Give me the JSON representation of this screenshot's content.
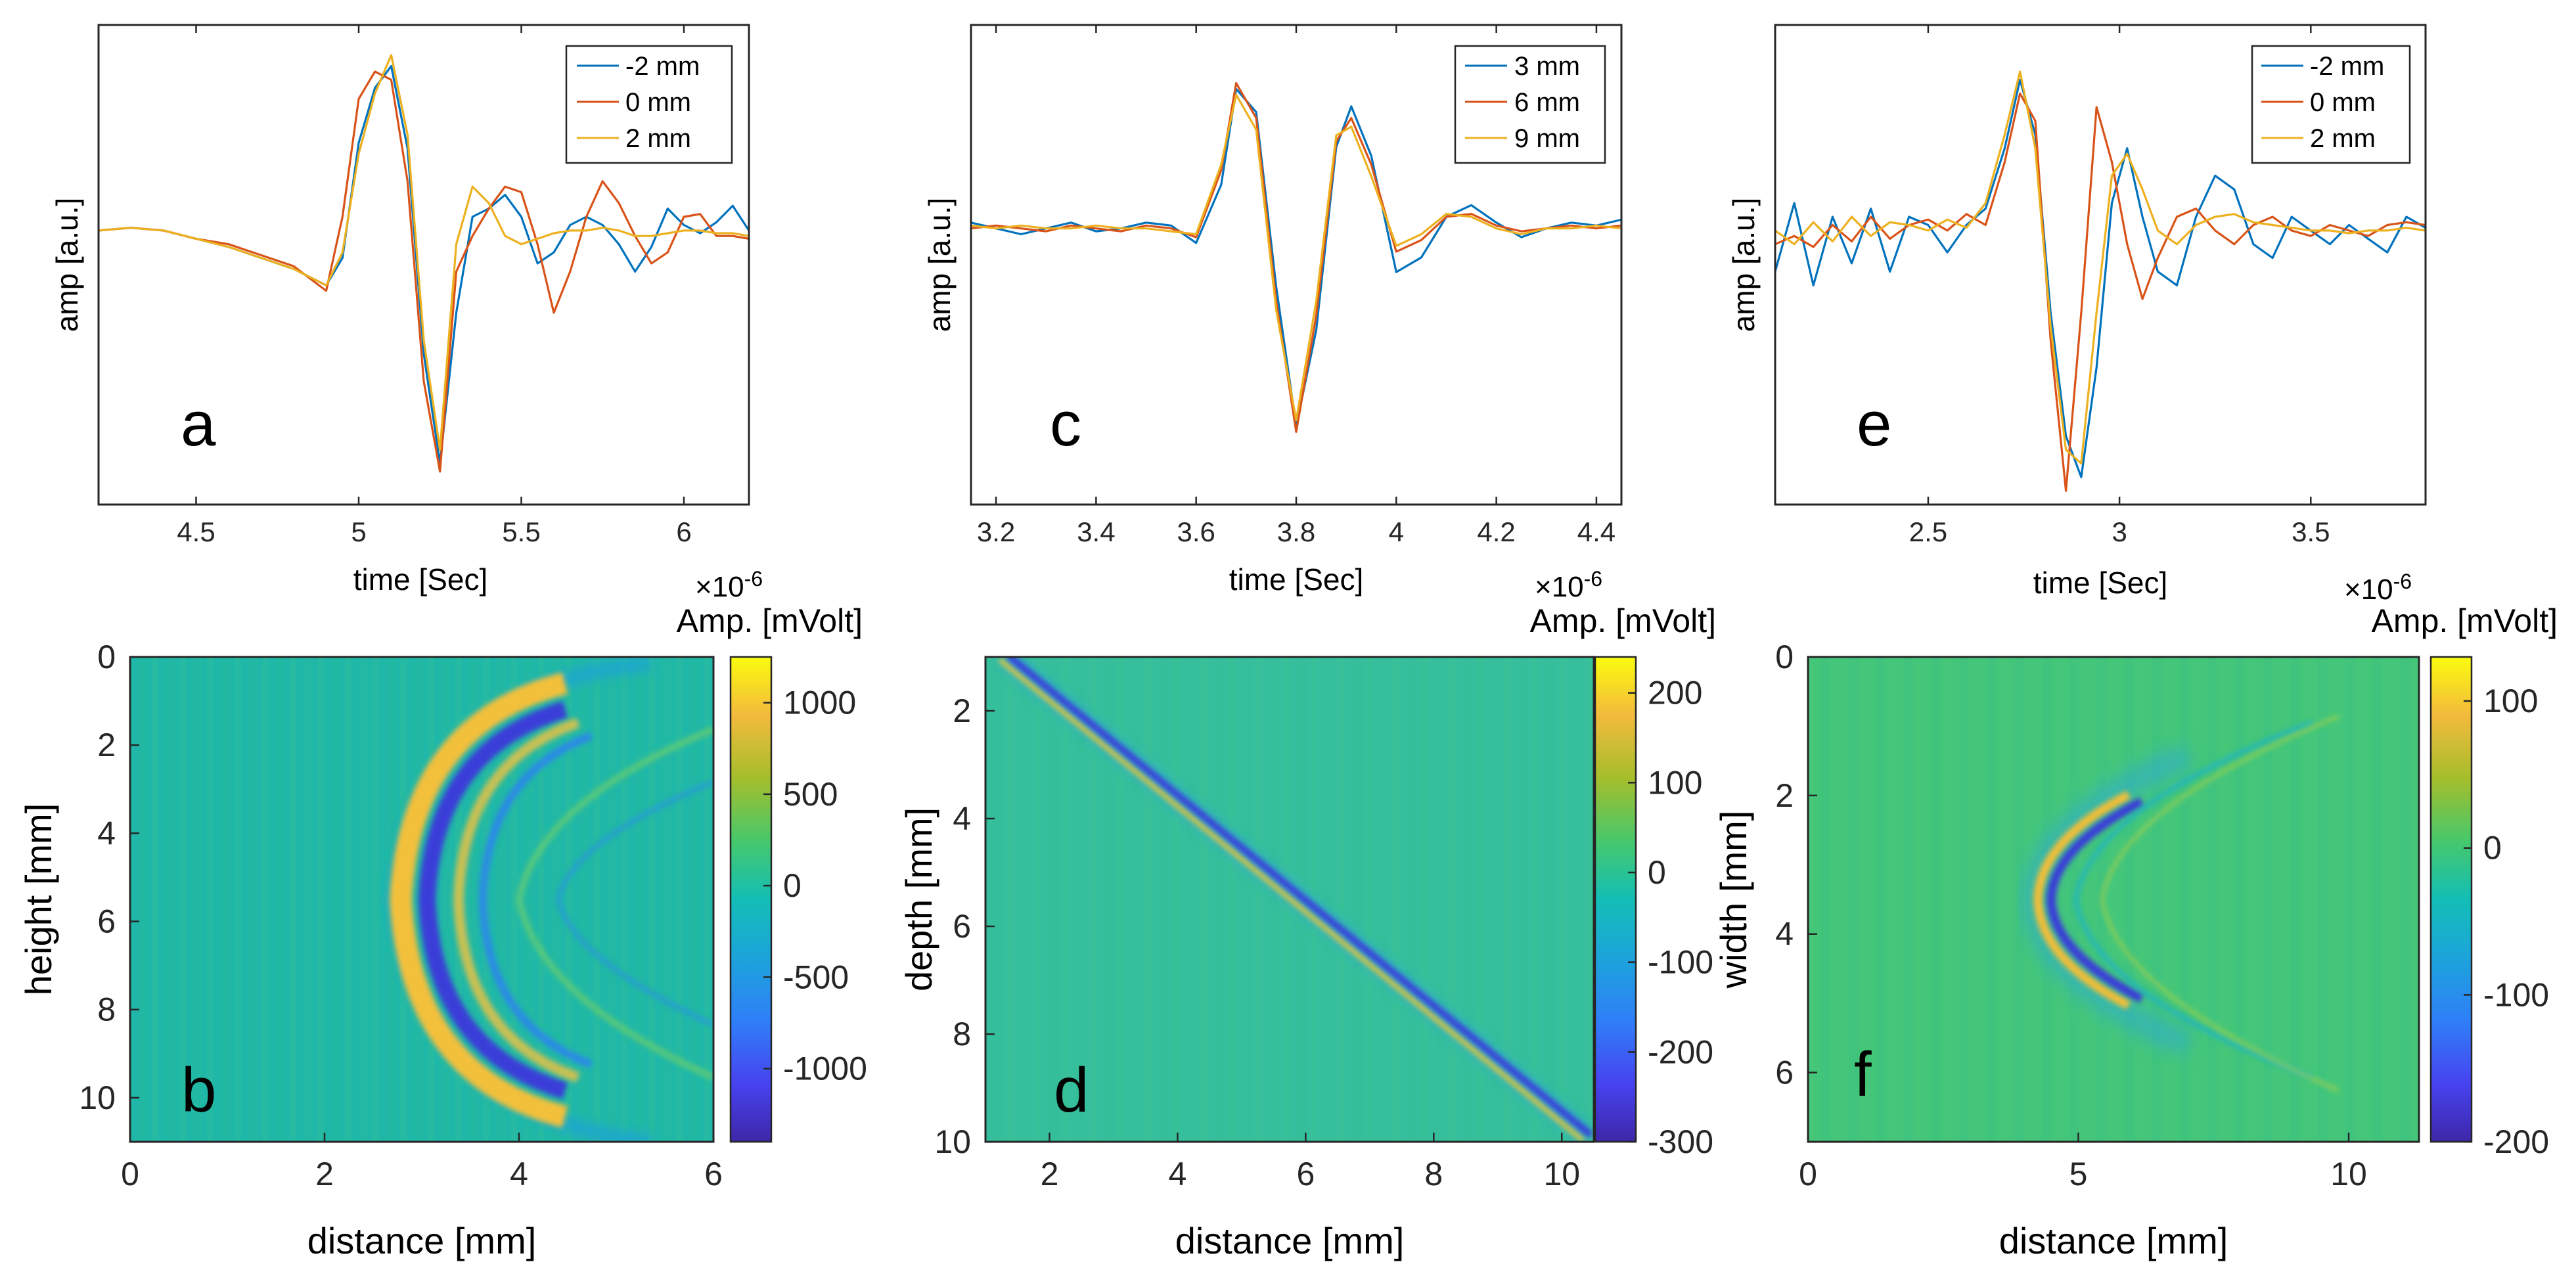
{
  "figure": {
    "panels": [
      {
        "letter": "a",
        "ylabel": "amp [a.u.]",
        "xlabel": "time [Sec]",
        "exponent": "×10",
        "exponent_power": "-6",
        "legend": [
          "-2 mm",
          "0 mm",
          "2 mm"
        ]
      },
      {
        "letter": "c",
        "ylabel": "amp [a.u.]",
        "xlabel": "time [Sec]",
        "exponent": "×10",
        "exponent_power": "-6",
        "legend": [
          "3 mm",
          "6 mm",
          "9 mm"
        ]
      },
      {
        "letter": "e",
        "ylabel": "amp [a.u.]",
        "xlabel": "time [Sec]",
        "exponent": "×10",
        "exponent_power": "-6",
        "legend": [
          "-2 mm",
          "0 mm",
          "2 mm"
        ]
      },
      {
        "letter": "b",
        "ylabel": "height [mm]",
        "xlabel": "distance [mm]",
        "colorbar_title": "Amp. [mVolt]"
      },
      {
        "letter": "d",
        "ylabel": "depth [mm]",
        "xlabel": "distance [mm]",
        "colorbar_title": "Amp. [mVolt]"
      },
      {
        "letter": "f",
        "ylabel": "width [mm]",
        "xlabel": "distance [mm]",
        "colorbar_title": "Amp. [mVolt]"
      }
    ],
    "series_colors": [
      "#0072BD",
      "#D95319",
      "#EDB120"
    ]
  },
  "chart_data": [
    {
      "type": "line",
      "panel": "a",
      "xlabel": "time [Sec]",
      "ylabel": "amp [a.u.]",
      "x_unit_exponent": "×10^-6",
      "xlim": [
        4.2,
        6.2
      ],
      "ylim": [
        -1.0,
        0.75
      ],
      "xticks": [
        4.5,
        5,
        5.5,
        6
      ],
      "xtick_labels": [
        "4.5",
        "5",
        "5.5",
        "6"
      ],
      "grid": false,
      "legend_position": "top-right",
      "series": [
        {
          "name": "-2 mm",
          "color": "#0072BD",
          "x": [
            4.2,
            4.3,
            4.4,
            4.5,
            4.6,
            4.7,
            4.8,
            4.9,
            4.95,
            5.0,
            5.05,
            5.1,
            5.15,
            5.2,
            5.25,
            5.3,
            5.35,
            5.4,
            5.45,
            5.5,
            5.55,
            5.6,
            5.65,
            5.7,
            5.75,
            5.8,
            5.85,
            5.9,
            5.95,
            6.0,
            6.05,
            6.1,
            6.15,
            6.2
          ],
          "y": [
            0.0,
            0.01,
            0.0,
            -0.03,
            -0.06,
            -0.1,
            -0.14,
            -0.2,
            -0.1,
            0.32,
            0.52,
            0.6,
            0.3,
            -0.45,
            -0.85,
            -0.3,
            0.05,
            0.08,
            0.13,
            0.05,
            -0.12,
            -0.08,
            0.02,
            0.05,
            0.02,
            -0.05,
            -0.15,
            -0.06,
            0.08,
            0.02,
            -0.01,
            0.03,
            0.09,
            0.0
          ]
        },
        {
          "name": "0 mm",
          "color": "#D95319",
          "x": [
            4.2,
            4.3,
            4.4,
            4.5,
            4.6,
            4.7,
            4.8,
            4.9,
            4.95,
            5.0,
            5.05,
            5.1,
            5.15,
            5.2,
            5.25,
            5.3,
            5.35,
            5.4,
            5.45,
            5.5,
            5.55,
            5.6,
            5.65,
            5.7,
            5.75,
            5.8,
            5.85,
            5.9,
            5.95,
            6.0,
            6.05,
            6.1,
            6.15,
            6.2
          ],
          "y": [
            0.0,
            0.01,
            0.0,
            -0.03,
            -0.05,
            -0.09,
            -0.13,
            -0.22,
            0.05,
            0.48,
            0.58,
            0.55,
            0.18,
            -0.55,
            -0.88,
            -0.15,
            -0.02,
            0.08,
            0.16,
            0.14,
            -0.05,
            -0.3,
            -0.15,
            0.05,
            0.18,
            0.1,
            -0.02,
            -0.12,
            -0.08,
            0.05,
            0.06,
            -0.02,
            -0.02,
            -0.03
          ]
        },
        {
          "name": "2 mm",
          "color": "#EDB120",
          "x": [
            4.2,
            4.3,
            4.4,
            4.5,
            4.6,
            4.7,
            4.8,
            4.9,
            4.95,
            5.0,
            5.05,
            5.1,
            5.15,
            5.2,
            5.25,
            5.3,
            5.35,
            5.4,
            5.45,
            5.5,
            5.55,
            5.6,
            5.65,
            5.7,
            5.75,
            5.8,
            5.85,
            5.9,
            5.95,
            6.0,
            6.05,
            6.1,
            6.15,
            6.2
          ],
          "y": [
            0.0,
            0.01,
            0.0,
            -0.03,
            -0.06,
            -0.1,
            -0.14,
            -0.2,
            -0.08,
            0.28,
            0.5,
            0.64,
            0.35,
            -0.4,
            -0.8,
            -0.05,
            0.16,
            0.1,
            -0.02,
            -0.05,
            -0.03,
            -0.01,
            0.0,
            0.0,
            0.01,
            0.0,
            -0.02,
            -0.02,
            -0.01,
            0.0,
            0.0,
            -0.01,
            -0.01,
            -0.02
          ]
        }
      ]
    },
    {
      "type": "line",
      "panel": "c",
      "xlabel": "time [Sec]",
      "ylabel": "amp [a.u.]",
      "x_unit_exponent": "×10^-6",
      "xlim": [
        3.15,
        4.45
      ],
      "ylim": [
        -0.95,
        0.7
      ],
      "xticks": [
        3.2,
        3.4,
        3.6,
        3.8,
        4.0,
        4.2,
        4.4
      ],
      "xtick_labels": [
        "3.2",
        "3.4",
        "3.6",
        "3.8",
        "4",
        "4.2",
        "4.4"
      ],
      "grid": false,
      "legend_position": "top-right",
      "series": [
        {
          "name": "3 mm",
          "color": "#0072BD",
          "x": [
            3.15,
            3.2,
            3.25,
            3.3,
            3.35,
            3.4,
            3.45,
            3.5,
            3.55,
            3.6,
            3.65,
            3.68,
            3.72,
            3.76,
            3.8,
            3.84,
            3.88,
            3.91,
            3.95,
            4.0,
            4.05,
            4.1,
            4.15,
            4.2,
            4.25,
            4.3,
            4.35,
            4.4,
            4.45
          ],
          "y": [
            0.02,
            0.0,
            -0.02,
            0.0,
            0.02,
            -0.01,
            0.0,
            0.02,
            0.01,
            -0.05,
            0.15,
            0.48,
            0.4,
            -0.2,
            -0.68,
            -0.35,
            0.28,
            0.42,
            0.25,
            -0.15,
            -0.1,
            0.04,
            0.08,
            0.02,
            -0.03,
            0.0,
            0.02,
            0.01,
            0.03
          ]
        },
        {
          "name": "6 mm",
          "color": "#D95319",
          "x": [
            3.15,
            3.2,
            3.25,
            3.3,
            3.35,
            3.4,
            3.45,
            3.5,
            3.55,
            3.6,
            3.65,
            3.68,
            3.72,
            3.76,
            3.8,
            3.84,
            3.88,
            3.91,
            3.95,
            4.0,
            4.05,
            4.1,
            4.15,
            4.2,
            4.25,
            4.3,
            4.35,
            4.4,
            4.45
          ],
          "y": [
            0.0,
            0.01,
            0.0,
            -0.01,
            0.01,
            0.0,
            -0.01,
            0.01,
            0.0,
            -0.03,
            0.2,
            0.5,
            0.38,
            -0.25,
            -0.7,
            -0.3,
            0.3,
            0.38,
            0.22,
            -0.08,
            -0.04,
            0.04,
            0.05,
            0.01,
            -0.01,
            0.0,
            0.01,
            0.0,
            0.01
          ]
        },
        {
          "name": "9 mm",
          "color": "#EDB120",
          "x": [
            3.15,
            3.2,
            3.25,
            3.3,
            3.35,
            3.4,
            3.45,
            3.5,
            3.55,
            3.6,
            3.65,
            3.68,
            3.72,
            3.76,
            3.8,
            3.84,
            3.88,
            3.91,
            3.95,
            4.0,
            4.05,
            4.1,
            4.15,
            4.2,
            4.25,
            4.3,
            4.35,
            4.4,
            4.45
          ],
          "y": [
            0.01,
            0.0,
            0.01,
            0.0,
            0.0,
            0.01,
            0.0,
            0.0,
            -0.01,
            -0.02,
            0.22,
            0.46,
            0.34,
            -0.28,
            -0.66,
            -0.25,
            0.32,
            0.35,
            0.18,
            -0.06,
            -0.02,
            0.05,
            0.04,
            0.0,
            -0.02,
            0.0,
            0.0,
            0.01,
            0.0
          ]
        }
      ]
    },
    {
      "type": "line",
      "panel": "e",
      "xlabel": "time [Sec]",
      "ylabel": "amp [a.u.]",
      "x_unit_exponent": "×10^-6",
      "xlim": [
        2.1,
        3.8
      ],
      "ylim": [
        -1.0,
        0.75
      ],
      "xticks": [
        2.5,
        3.0,
        3.5
      ],
      "xtick_labels": [
        "2.5",
        "3",
        "3.5"
      ],
      "grid": false,
      "legend_position": "top-right",
      "series": [
        {
          "name": "-2 mm",
          "color": "#0072BD",
          "x": [
            2.1,
            2.15,
            2.2,
            2.25,
            2.3,
            2.35,
            2.4,
            2.45,
            2.5,
            2.55,
            2.6,
            2.65,
            2.7,
            2.74,
            2.78,
            2.82,
            2.86,
            2.9,
            2.94,
            2.98,
            3.02,
            3.06,
            3.1,
            3.15,
            3.2,
            3.25,
            3.3,
            3.35,
            3.4,
            3.45,
            3.5,
            3.55,
            3.6,
            3.65,
            3.7,
            3.75,
            3.8
          ],
          "y": [
            -0.15,
            0.1,
            -0.2,
            0.05,
            -0.12,
            0.08,
            -0.15,
            0.05,
            0.02,
            -0.08,
            0.02,
            0.08,
            0.3,
            0.55,
            0.35,
            -0.3,
            -0.75,
            -0.9,
            -0.5,
            0.1,
            0.3,
            0.05,
            -0.15,
            -0.2,
            0.05,
            0.2,
            0.15,
            -0.05,
            -0.1,
            0.05,
            0.0,
            -0.05,
            0.02,
            -0.03,
            -0.08,
            0.05,
            0.01
          ]
        },
        {
          "name": "0 mm",
          "color": "#D95319",
          "x": [
            2.1,
            2.15,
            2.2,
            2.25,
            2.3,
            2.35,
            2.4,
            2.45,
            2.5,
            2.55,
            2.6,
            2.65,
            2.7,
            2.74,
            2.78,
            2.82,
            2.86,
            2.9,
            2.94,
            2.98,
            3.02,
            3.06,
            3.1,
            3.15,
            3.2,
            3.25,
            3.3,
            3.35,
            3.4,
            3.45,
            3.5,
            3.55,
            3.6,
            3.65,
            3.7,
            3.75,
            3.8
          ],
          "y": [
            -0.05,
            -0.02,
            -0.06,
            0.02,
            -0.04,
            0.05,
            -0.03,
            0.02,
            0.04,
            0.0,
            0.06,
            0.02,
            0.25,
            0.5,
            0.4,
            -0.4,
            -0.95,
            -0.3,
            0.45,
            0.25,
            -0.05,
            -0.25,
            -0.1,
            0.05,
            0.08,
            0.0,
            -0.05,
            0.02,
            0.05,
            0.0,
            -0.02,
            0.02,
            0.0,
            -0.02,
            0.02,
            0.03,
            0.02
          ]
        },
        {
          "name": "2 mm",
          "color": "#EDB120",
          "x": [
            2.1,
            2.15,
            2.2,
            2.25,
            2.3,
            2.35,
            2.4,
            2.45,
            2.5,
            2.55,
            2.6,
            2.65,
            2.7,
            2.74,
            2.78,
            2.82,
            2.86,
            2.9,
            2.94,
            2.98,
            3.02,
            3.06,
            3.1,
            3.15,
            3.2,
            3.25,
            3.3,
            3.35,
            3.4,
            3.45,
            3.5,
            3.55,
            3.6,
            3.65,
            3.7,
            3.75,
            3.8
          ],
          "y": [
            0.0,
            -0.05,
            0.03,
            -0.04,
            0.05,
            -0.02,
            0.03,
            0.02,
            0.0,
            0.04,
            0.01,
            0.1,
            0.35,
            0.58,
            0.3,
            -0.35,
            -0.8,
            -0.85,
            -0.3,
            0.2,
            0.28,
            0.15,
            0.0,
            -0.05,
            0.02,
            0.05,
            0.06,
            0.03,
            0.02,
            0.01,
            0.0,
            0.0,
            -0.01,
            0.0,
            0.0,
            0.01,
            0.0
          ]
        }
      ]
    },
    {
      "type": "heatmap",
      "panel": "b",
      "xlabel": "distance [mm]",
      "ylabel": "height [mm]",
      "xlim": [
        0,
        6
      ],
      "ylim": [
        0,
        11
      ],
      "y_reversed": true,
      "xticks": [
        0,
        2,
        4,
        6
      ],
      "yticks": [
        0,
        2,
        4,
        6,
        8,
        10
      ],
      "colorbar": {
        "title": "Amp. [mVolt]",
        "range": [
          -1400,
          1250
        ],
        "ticks": [
          1000,
          500,
          0,
          -500,
          -1000
        ]
      },
      "colormap": "parula",
      "pattern": "hyperbolic wavefront, apex at x≈2.8 mm, y≈5.5 mm"
    },
    {
      "type": "heatmap",
      "panel": "d",
      "xlabel": "distance [mm]",
      "ylabel": "depth [mm]",
      "xlim": [
        1,
        10.5
      ],
      "ylim": [
        1,
        10
      ],
      "y_reversed": true,
      "xticks": [
        2,
        4,
        6,
        8,
        10
      ],
      "yticks": [
        2,
        4,
        6,
        8,
        10
      ],
      "colorbar": {
        "title": "Amp. [mVolt]",
        "range": [
          -300,
          240
        ],
        "ticks": [
          200,
          100,
          0,
          -100,
          -200,
          -300
        ]
      },
      "colormap": "parula",
      "pattern": "diagonal line from (1.3, 1) to (10.4, 9.9)"
    },
    {
      "type": "heatmap",
      "panel": "f",
      "xlabel": "distance [mm]",
      "ylabel": "width [mm]",
      "xlim": [
        0,
        11.3
      ],
      "ylim": [
        0,
        7
      ],
      "y_reversed": true,
      "xticks": [
        0,
        5,
        10
      ],
      "yticks": [
        0,
        2,
        4,
        6
      ],
      "colorbar": {
        "title": "Amp. [mVolt]",
        "range": [
          -200,
          130
        ],
        "ticks": [
          100,
          0,
          -100,
          -200
        ]
      },
      "colormap": "parula",
      "pattern": "hyperbolic wavefront, apex at x≈4.4 mm, y≈3.5 mm"
    }
  ]
}
